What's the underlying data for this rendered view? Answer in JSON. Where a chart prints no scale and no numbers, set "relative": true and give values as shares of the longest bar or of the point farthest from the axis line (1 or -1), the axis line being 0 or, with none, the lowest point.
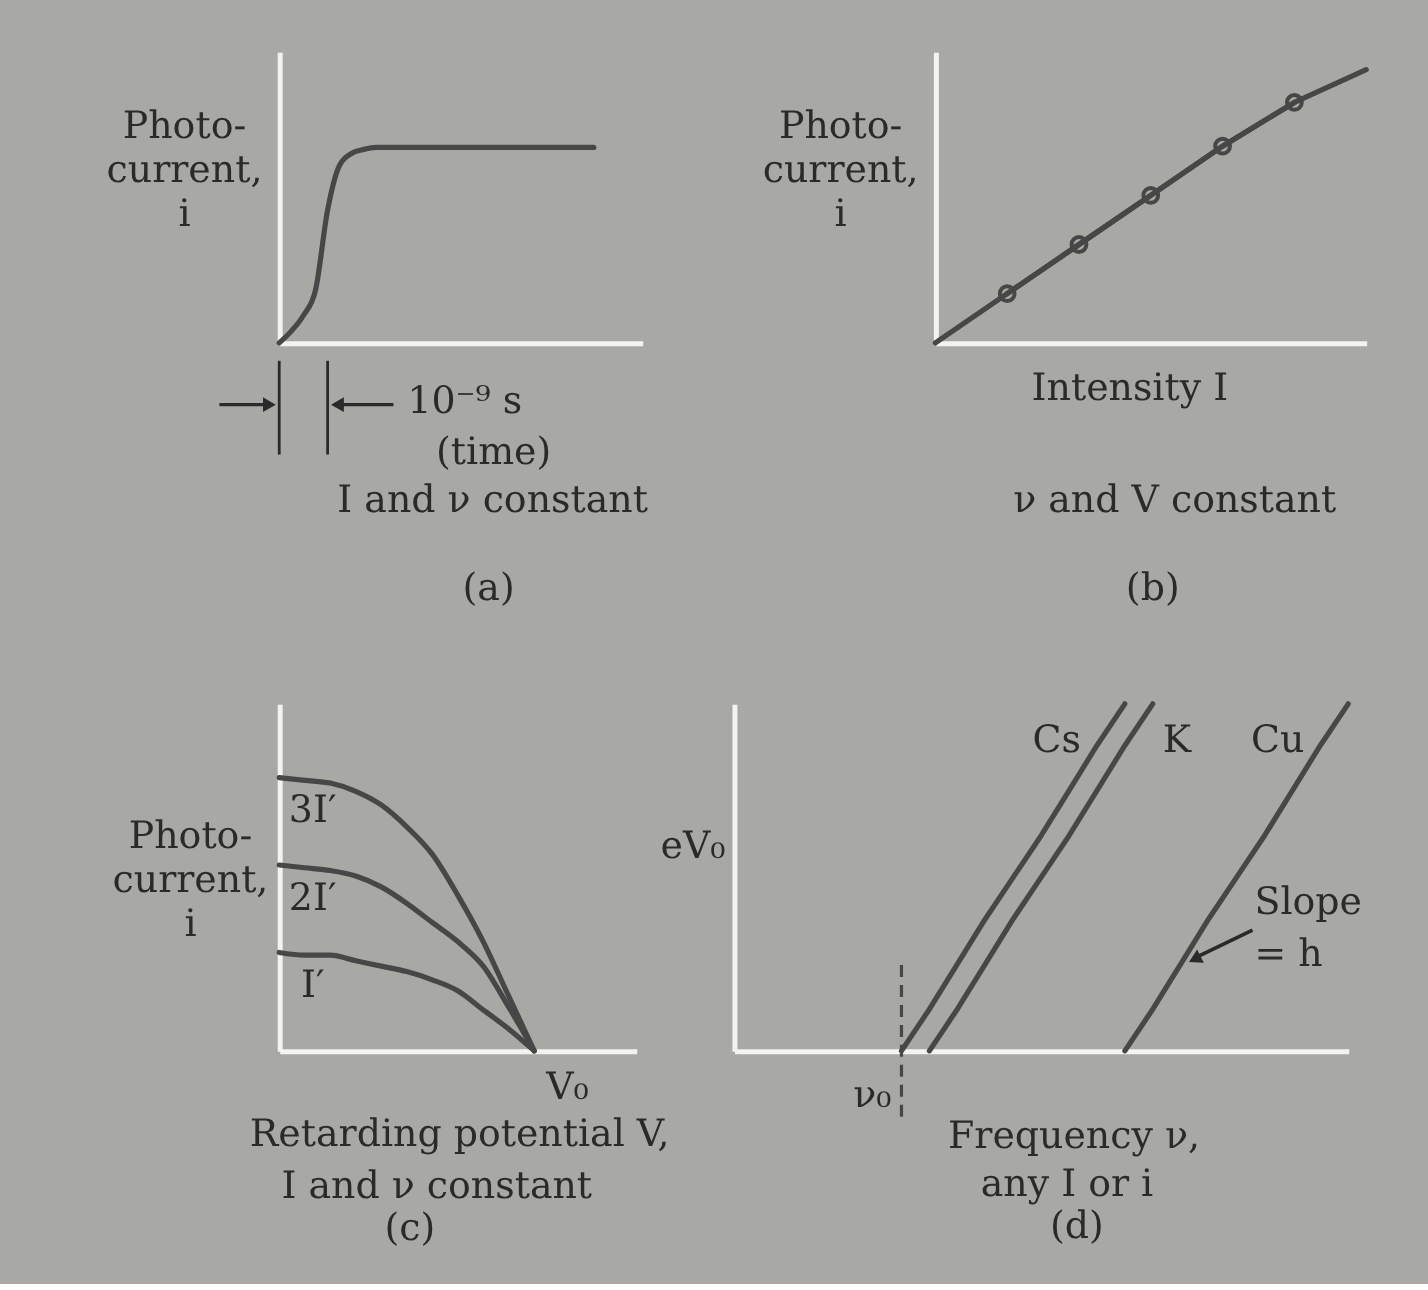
{
  "chart_data": [
    {
      "type": "line",
      "title": "(a)",
      "xlabel": "(time)",
      "ylabel": "Photo-\ncurrent,\ni",
      "annotations": [
        "10⁻⁹ s",
        "I and ν constant"
      ],
      "relative": true,
      "categories": [
        null,
        null,
        null,
        null,
        null,
        null,
        null,
        null,
        null,
        null,
        null,
        null,
        null,
        null,
        null,
        null,
        null,
        null,
        null,
        null,
        null,
        null,
        null,
        null,
        null,
        null,
        null,
        null,
        null,
        null,
        null
      ],
      "series": [
        {
          "color": "#474747",
          "values": [
            0,
            0.06,
            0.14,
            0.27,
            0.68,
            0.91,
            0.97,
            0.99,
            1,
            1,
            1,
            1,
            1,
            1,
            1,
            1,
            1,
            1,
            1,
            1,
            1,
            1,
            1,
            1,
            1,
            1,
            1,
            null,
            null,
            null,
            null
          ]
        }
      ]
    },
    {
      "type": "line",
      "title": "(b)",
      "xlabel": "Intensity I",
      "ylabel": "Photo-\ncurrent,\ni",
      "annotations": [
        "ν and V constant"
      ],
      "relative": true,
      "categories": [
        null,
        null,
        null,
        null,
        null,
        null,
        null
      ],
      "series": [
        {
          "marker": "circle",
          "color": "#474747",
          "values": [
            null,
            0.18,
            0.36,
            0.54,
            0.72,
            0.88,
            null
          ]
        },
        {
          "color": "#474747",
          "values": [
            0,
            0.18,
            0.36,
            0.54,
            0.72,
            0.88,
            1
          ]
        }
      ]
    },
    {
      "type": "line",
      "title": "(c)",
      "xlabel": "Retarding potential V,",
      "ylabel": "Photo-\ncurrent,\ni",
      "annotations": [
        "V₀",
        "I and ν constant"
      ],
      "relative": true,
      "categories": [
        null,
        null,
        null,
        null,
        null,
        null,
        null,
        null,
        null,
        null,
        null,
        null,
        null,
        null,
        null
      ],
      "series": [
        {
          "name": "3I′",
          "color": "#474747",
          "values": [
            1,
            0.99,
            0.98,
            0.95,
            0.9,
            0.82,
            0.72,
            0.57,
            0.4,
            0.2,
            0,
            null,
            null,
            null,
            null
          ]
        },
        {
          "name": "2I′",
          "color": "#474747",
          "values": [
            0.68,
            0.67,
            0.66,
            0.64,
            0.6,
            0.54,
            0.47,
            0.4,
            0.31,
            0.16,
            0,
            null,
            null,
            null,
            null
          ]
        },
        {
          "name": "I′",
          "color": "#474747",
          "values": [
            0.36,
            0.35,
            0.35,
            0.33,
            0.31,
            0.29,
            0.26,
            0.22,
            0.15,
            0.08,
            0,
            null,
            null,
            null,
            null
          ]
        }
      ]
    },
    {
      "type": "line",
      "title": "(d)",
      "xlabel": "Frequency ν,",
      "ylabel": "eV₀",
      "annotations": [
        "Slope\n= h",
        "any I or i"
      ],
      "relative": true,
      "categories": [
        null,
        null,
        null,
        null,
        null,
        null,
        null,
        null,
        null,
        null,
        null,
        null,
        null,
        null,
        null,
        null,
        null,
        null,
        null,
        null,
        null,
        null,
        null
      ],
      "ref_lines": [
        {
          "axis": "x",
          "label": "ν₀",
          "line_style": "dashed",
          "color": "#474747"
        }
      ],
      "series": [
        {
          "name": "Cs",
          "color": "#474747",
          "values": [
            null,
            null,
            null,
            null,
            null,
            null,
            0,
            0.12,
            0.25,
            0.38,
            0.5,
            0.62,
            0.75,
            0.88,
            1,
            null,
            null,
            null,
            null,
            null,
            null,
            null,
            null
          ]
        },
        {
          "name": "K",
          "color": "#474747",
          "values": [
            null,
            null,
            null,
            null,
            null,
            null,
            null,
            0,
            0.12,
            0.25,
            0.38,
            0.5,
            0.62,
            0.75,
            0.88,
            1,
            null,
            null,
            null,
            null,
            null,
            null,
            null
          ]
        },
        {
          "name": "Cu",
          "color": "#474747",
          "values": [
            null,
            null,
            null,
            null,
            null,
            null,
            null,
            null,
            null,
            null,
            null,
            null,
            null,
            null,
            0,
            0.12,
            0.25,
            0.38,
            0.5,
            0.62,
            0.75,
            0.88,
            1
          ]
        }
      ]
    }
  ]
}
